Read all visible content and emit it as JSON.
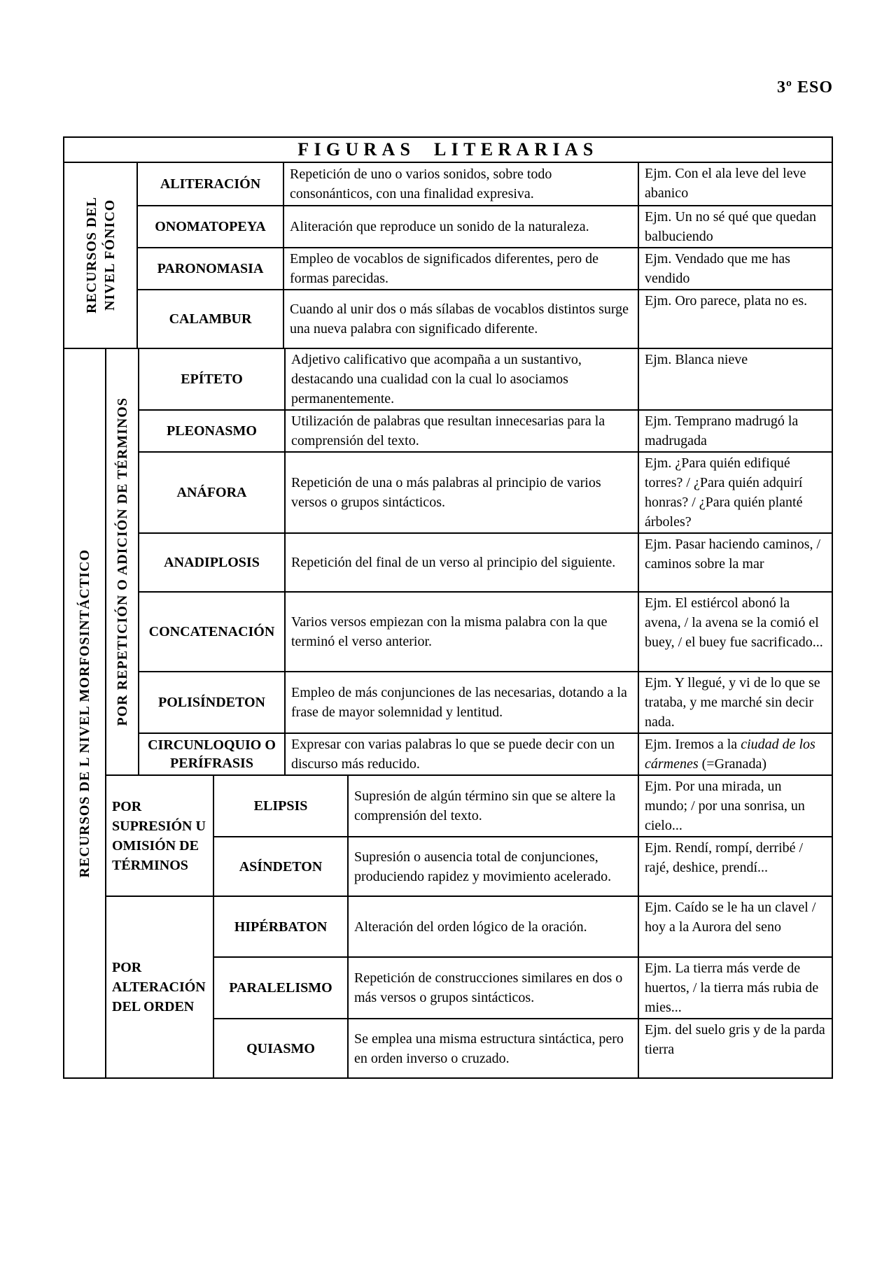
{
  "page": {
    "grade_label": "3º ESO"
  },
  "table": {
    "title": "FIGURAS LITERARIAS",
    "level_phonic": {
      "header_line1": "RECURSOS DEL",
      "header_line2": "NIVEL FÓNICO",
      "rows": [
        {
          "term": "ALITERACIÓN",
          "definition": "Repetición de uno o varios sonidos, sobre todo consonánticos, con una finalidad expresiva.",
          "example": "Ejm. Con el ala leve del leve abanico"
        },
        {
          "term": "ONOMATOPEYA",
          "definition": "Aliteración que reproduce un sonido de la naturaleza.",
          "example": "Ejm. Un no sé qué que quedan balbuciendo"
        },
        {
          "term": "PARONOMASIA",
          "definition": "Empleo de vocablos de significados diferentes, pero de formas parecidas.",
          "example": "Ejm. Vendado que me has vendido"
        },
        {
          "term": "CALAMBUR",
          "definition": "Cuando al unir dos o más sílabas de vocablos distintos surge una nueva palabra con significado diferente.",
          "example": "Ejm. Oro parece, plata no es."
        }
      ]
    },
    "level_morpho": {
      "header": "RECURSOS DE L NIVEL MORFOSINTÁCTICO",
      "sub_repetition": {
        "header": "POR REPETICIÓN O ADICIÓN DE TÉRMINOS",
        "rows": [
          {
            "term": "EPÍTETO",
            "definition": "Adjetivo calificativo que acompaña a un sustantivo, destacando una cualidad con la cual lo asociamos permanentemente.",
            "example": "Ejm. Blanca nieve"
          },
          {
            "term": "PLEONASMO",
            "definition": "Utilización de palabras que resultan innecesarias para la comprensión del texto.",
            "example": "Ejm. Temprano madrugó la madrugada"
          },
          {
            "term": "ANÁFORA",
            "definition": "Repetición de una o más palabras al principio de varios versos o grupos sintácticos.",
            "example": "Ejm. ¿Para quién edifiqué torres? / ¿Para quién adquirí honras? / ¿Para quién planté árboles?"
          },
          {
            "term": "ANADIPLOSIS",
            "definition": "Repetición del final de un verso al principio del siguiente.",
            "example": "Ejm. Pasar haciendo caminos, / caminos sobre la mar"
          },
          {
            "term": "CONCATENACIÓN",
            "definition": "Varios versos empiezan con la misma palabra con la que terminó el verso anterior.",
            "example": "Ejm. El estiércol abonó la avena, / la avena se la comió el buey, / el buey fue sacrificado..."
          },
          {
            "term": "POLISÍNDETON",
            "definition": "Empleo de más conjunciones de las necesarias, dotando a la frase de mayor solemnidad y lentitud.",
            "example": "Ejm. Y llegué, y vi de lo que se trataba, y me marché sin decir nada."
          },
          {
            "term": "CIRCUNLOQUIO O PERÍFRASIS",
            "definition": "Expresar con varias palabras lo que se puede decir con un discurso más reducido.",
            "example_parts": [
              {
                "text": "Ejm. Iremos a la ",
                "italic": false
              },
              {
                "text": "ciudad de los cármenes",
                "italic": true
              },
              {
                "text": " (=Granada)",
                "italic": false
              }
            ]
          }
        ]
      },
      "sub_suppression": {
        "header": "POR SUPRESIÓN U OMISIÓN DE TÉRMINOS",
        "rows": [
          {
            "term": "ELIPSIS",
            "definition": "Supresión de algún término sin que se altere la comprensión del texto.",
            "example": "Ejm. Por una mirada, un mundo; / por una sonrisa, un cielo..."
          },
          {
            "term": "ASÍNDETON",
            "definition": "Supresión o ausencia total de conjunciones, produciendo rapidez y movimiento acelerado.",
            "example": "Ejm. Rendí, rompí, derribé / rajé, deshice, prendí..."
          }
        ]
      },
      "sub_order": {
        "header": "POR ALTERACIÓN DEL ORDEN",
        "rows": [
          {
            "term": "HIPÉRBATON",
            "definition": "Alteración del orden lógico de la oración.",
            "example": "Ejm. Caído se le ha un clavel / hoy a la Aurora del seno"
          },
          {
            "term": "PARALELISMO",
            "definition": "Repetición de construcciones similares en dos o más versos o grupos sintácticos.",
            "example": "Ejm. La tierra más verde de huertos, / la tierra más rubia de mies..."
          },
          {
            "term": "QUIASMO",
            "definition": "Se emplea una misma estructura sintáctica, pero en orden inverso o cruzado.",
            "example": "Ejm. del suelo gris y de la parda tierra"
          }
        ]
      }
    }
  }
}
